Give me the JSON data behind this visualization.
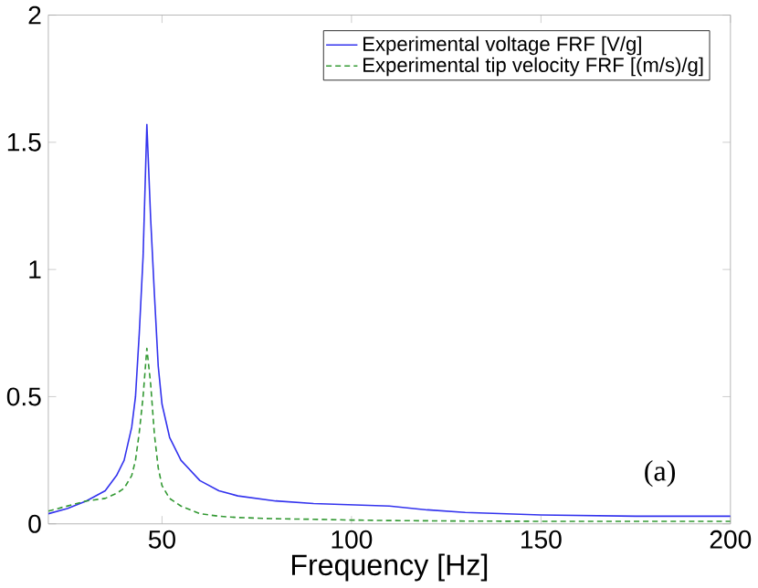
{
  "chart_data": {
    "type": "line",
    "xlabel": "Frequency [Hz]",
    "x": [
      20,
      25,
      30,
      35,
      38,
      40,
      42,
      43,
      44,
      45,
      46,
      47,
      48,
      49,
      50,
      52,
      55,
      60,
      65,
      70,
      80,
      90,
      100,
      110,
      120,
      130,
      150,
      175,
      200
    ],
    "series": [
      {
        "name": "Experimental voltage FRF [V/g]",
        "color": "#3333ee",
        "line_style": "solid",
        "values": [
          0.04,
          0.06,
          0.09,
          0.13,
          0.19,
          0.25,
          0.38,
          0.5,
          0.75,
          1.05,
          1.57,
          1.2,
          0.9,
          0.62,
          0.47,
          0.34,
          0.25,
          0.17,
          0.13,
          0.11,
          0.09,
          0.08,
          0.075,
          0.07,
          0.055,
          0.045,
          0.035,
          0.03,
          0.03
        ]
      },
      {
        "name": "Experimental tip velocity FRF [(m/s)/g]",
        "color": "#339933",
        "line_style": "dashed",
        "values": [
          0.05,
          0.07,
          0.09,
          0.1,
          0.12,
          0.14,
          0.19,
          0.25,
          0.36,
          0.5,
          0.69,
          0.55,
          0.35,
          0.22,
          0.15,
          0.1,
          0.07,
          0.04,
          0.03,
          0.025,
          0.02,
          0.018,
          0.015,
          0.013,
          0.012,
          0.011,
          0.01,
          0.01,
          0.01
        ]
      }
    ],
    "xlim": [
      20,
      200
    ],
    "ylim": [
      0,
      2
    ],
    "xticks": [
      50,
      100,
      150,
      200
    ],
    "yticks": [
      0,
      0.5,
      1,
      1.5,
      2
    ],
    "legend": "top right",
    "grid": false,
    "marker": "none",
    "annotations": [
      "(a)"
    ]
  }
}
